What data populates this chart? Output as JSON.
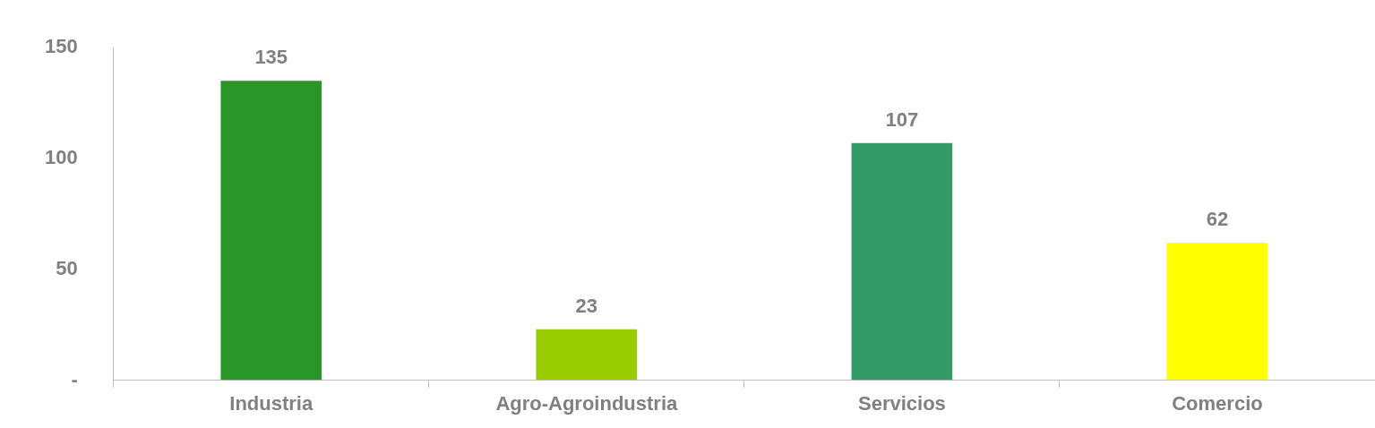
{
  "chart_data": {
    "type": "bar",
    "categories": [
      "Industria",
      "Agro-Agroindustria",
      "Servicios",
      "Comercio"
    ],
    "values": [
      135,
      23,
      107,
      62
    ],
    "colors": [
      "#2a962a",
      "#99cc00",
      "#339966",
      "#ffff00"
    ],
    "ylim": [
      0,
      150
    ],
    "yticks": [
      {
        "value": 0,
        "label": "-"
      },
      50,
      100,
      150
    ],
    "data_labels": true,
    "grid": false,
    "legend": false
  }
}
